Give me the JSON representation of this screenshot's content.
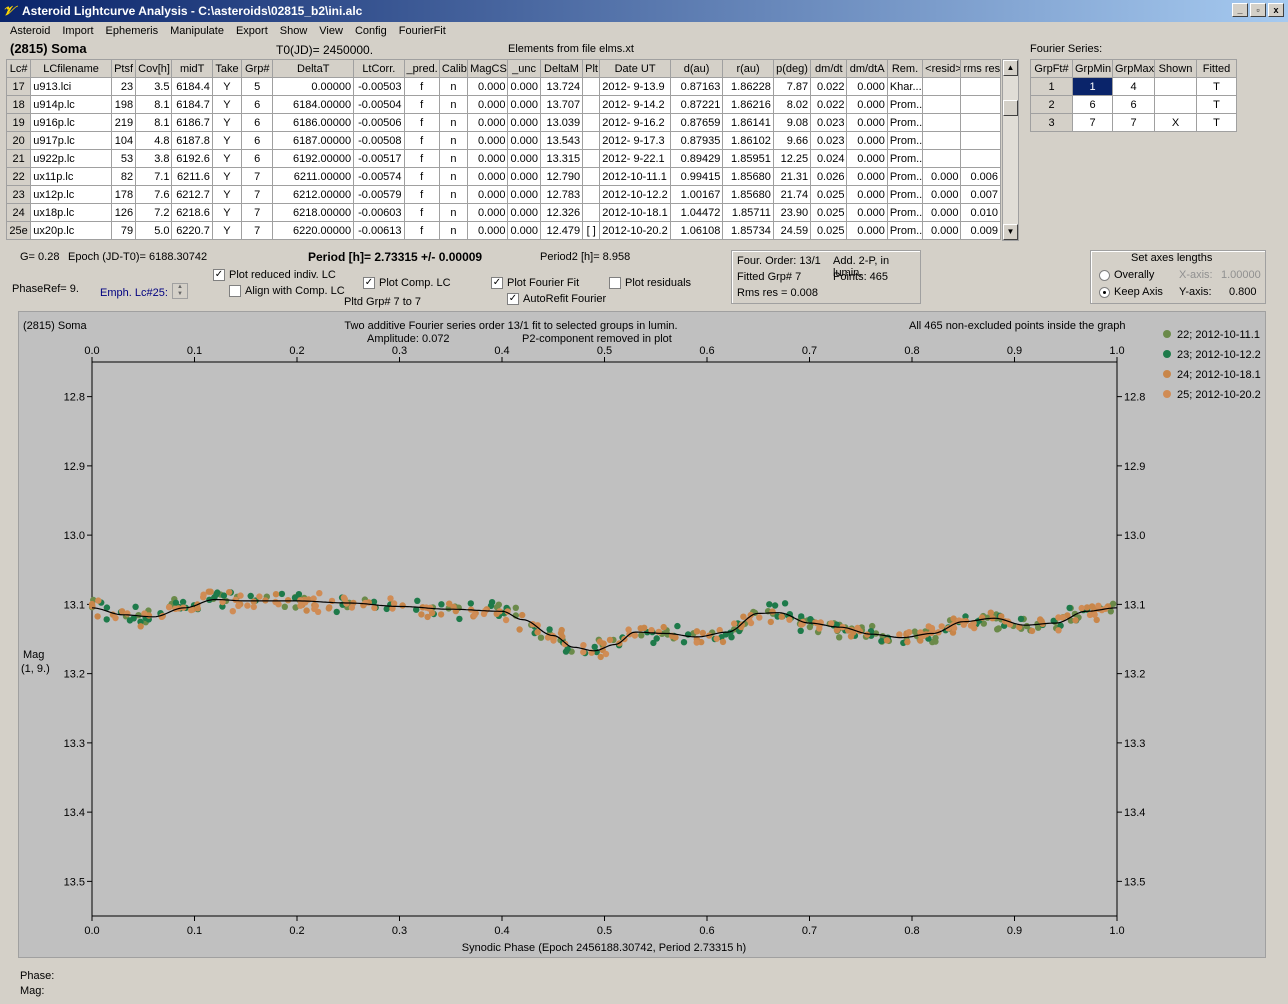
{
  "window": {
    "title": "Asteroid Lightcurve Analysis - C:\\asteroids\\02815_b2\\ini.alc",
    "btn_min": "_",
    "btn_restore": "▫",
    "btn_close": "x"
  },
  "menu": [
    "Asteroid",
    "Import",
    "Ephemeris",
    "Manipulate",
    "Export",
    "Show",
    "View",
    "Config",
    "FourierFit"
  ],
  "header": {
    "asteroid_name": "(2815) Soma",
    "t0": "T0(JD)= 2450000.",
    "elements": "Elements from file elms.xt"
  },
  "lc_table": {
    "columns": [
      "Lc#",
      "LCfilename",
      "Ptsf",
      "Cov[h]",
      "midT",
      "Take",
      "Grp#",
      "DeltaT",
      "LtCorr.",
      "_pred.",
      "Calib.",
      "MagCS",
      "_unc",
      "DeltaM",
      "Plt",
      "Date UT",
      "d(au)",
      "r(au)",
      "p(deg)",
      "dm/dt",
      "dm/dtA",
      "Rem.",
      "<resid>",
      "rms res"
    ],
    "rows": [
      [
        "17",
        "u913.lci",
        "23",
        "3.5",
        "6184.4",
        "Y",
        "5",
        "0.00000",
        "-0.00503",
        "f",
        "n",
        "0.000",
        "0.000",
        "13.724",
        "",
        "2012- 9-13.9",
        "0.87163",
        "1.86228",
        "7.87",
        "0.022",
        "0.000",
        "Khar...",
        "",
        ""
      ],
      [
        "18",
        "u914p.lc",
        "198",
        "8.1",
        "6184.7",
        "Y",
        "6",
        "6184.00000",
        "-0.00504",
        "f",
        "n",
        "0.000",
        "0.000",
        "13.707",
        "",
        "2012- 9-14.2",
        "0.87221",
        "1.86216",
        "8.02",
        "0.022",
        "0.000",
        "Prom...",
        "",
        ""
      ],
      [
        "19",
        "u916p.lc",
        "219",
        "8.1",
        "6186.7",
        "Y",
        "6",
        "6186.00000",
        "-0.00506",
        "f",
        "n",
        "0.000",
        "0.000",
        "13.039",
        "",
        "2012- 9-16.2",
        "0.87659",
        "1.86141",
        "9.08",
        "0.023",
        "0.000",
        "Prom...",
        "",
        ""
      ],
      [
        "20",
        "u917p.lc",
        "104",
        "4.8",
        "6187.8",
        "Y",
        "6",
        "6187.00000",
        "-0.00508",
        "f",
        "n",
        "0.000",
        "0.000",
        "13.543",
        "",
        "2012- 9-17.3",
        "0.87935",
        "1.86102",
        "9.66",
        "0.023",
        "0.000",
        "Prom...",
        "",
        ""
      ],
      [
        "21",
        "u922p.lc",
        "53",
        "3.8",
        "6192.6",
        "Y",
        "6",
        "6192.00000",
        "-0.00517",
        "f",
        "n",
        "0.000",
        "0.000",
        "13.315",
        "",
        "2012- 9-22.1",
        "0.89429",
        "1.85951",
        "12.25",
        "0.024",
        "0.000",
        "Prom...",
        "",
        ""
      ],
      [
        "22",
        "ux11p.lc",
        "82",
        "7.1",
        "6211.6",
        "Y",
        "7",
        "6211.00000",
        "-0.00574",
        "f",
        "n",
        "0.000",
        "0.000",
        "12.790",
        "",
        "2012-10-11.1",
        "0.99415",
        "1.85680",
        "21.31",
        "0.026",
        "0.000",
        "Prom...",
        "0.000",
        "0.006"
      ],
      [
        "23",
        "ux12p.lc",
        "178",
        "7.6",
        "6212.7",
        "Y",
        "7",
        "6212.00000",
        "-0.00579",
        "f",
        "n",
        "0.000",
        "0.000",
        "12.783",
        "",
        "2012-10-12.2",
        "1.00167",
        "1.85680",
        "21.74",
        "0.025",
        "0.000",
        "Prom...",
        "0.000",
        "0.007"
      ],
      [
        "24",
        "ux18p.lc",
        "126",
        "7.2",
        "6218.6",
        "Y",
        "7",
        "6218.00000",
        "-0.00603",
        "f",
        "n",
        "0.000",
        "0.000",
        "12.326",
        "",
        "2012-10-18.1",
        "1.04472",
        "1.85711",
        "23.90",
        "0.025",
        "0.000",
        "Prom...",
        "0.000",
        "0.010"
      ],
      [
        "25e",
        "ux20p.lc",
        "79",
        "5.0",
        "6220.7",
        "Y",
        "7",
        "6220.00000",
        "-0.00613",
        "f",
        "n",
        "0.000",
        "0.000",
        "12.479",
        "[ ]",
        "2012-10-20.2",
        "1.06108",
        "1.85734",
        "24.59",
        "0.025",
        "0.000",
        "Prom...",
        "0.000",
        "0.009"
      ]
    ]
  },
  "fourier_series": {
    "title": "Fourier Series:",
    "columns": [
      "GrpFt#",
      "GrpMin",
      "GrpMax",
      "Shown",
      "Fitted"
    ],
    "rows": [
      [
        "1",
        "1",
        "4",
        "",
        "T"
      ],
      [
        "2",
        "6",
        "6",
        "",
        "T"
      ],
      [
        "3",
        "7",
        "7",
        "X",
        "T"
      ]
    ]
  },
  "controls": {
    "g_value": "G= 0.28",
    "epoch": "Epoch (JD-T0)= 6188.30742",
    "period": "Period [h]= 2.73315 +/- 0.00009",
    "period2": "Period2 [h]= 8.958",
    "phaseref": "PhaseRef= 9.",
    "emph_lc": "Emph. Lc#25:",
    "plot_reduced": "Plot reduced indiv. LC",
    "align_comp": "Align with Comp. LC",
    "plot_comp": "Plot Comp. LC",
    "pltd_grp": "Pltd Grp#  7  to  7",
    "plot_fourier": "Plot Fourier Fit",
    "autorefit": "AutoRefit Fourier",
    "plot_residuals": "Plot residuals",
    "four_order": "Four. Order: 13/1",
    "add_2p": "Add. 2-P, in lumin.",
    "fitted_grp": "Fitted Grp# 7",
    "points": "Points: 465",
    "rms_res": "Rms res     = 0.008",
    "axes_title": "Set axes lengths",
    "overally": "Overally",
    "keep_axis": "Keep Axis",
    "x_axis_label": "X-axis:",
    "x_axis_value": "1.00000",
    "y_axis_label": "Y-axis:",
    "y_axis_value": "0.800"
  },
  "plot": {
    "name_label": "(2815) Soma",
    "title_line1": "Two additive Fourier series order 13/1 fit to selected groups in lumin.",
    "amplitude": "Amplitude: 0.072",
    "p2_removed": "P2-component removed in plot",
    "points_note": "All 465 non-excluded points inside the graph",
    "ylabel1": "Mag",
    "ylabel2": "(1, 9.)",
    "xlabel": "Synodic Phase (Epoch 2456188.30742, Period 2.73315 h)",
    "legend": [
      {
        "label": "22; 2012-10-11.1",
        "color": "#6b8a4a"
      },
      {
        "label": "23; 2012-10-12.2",
        "color": "#1e7a4a"
      },
      {
        "label": "24; 2012-10-18.1",
        "color": "#c8864a"
      },
      {
        "label": "25; 2012-10-20.2",
        "color": "#d08c55"
      }
    ]
  },
  "chart_data": {
    "type": "scatter",
    "title": "Two additive Fourier series order 13/1 fit to selected groups in lumin.",
    "xlabel": "Synodic Phase (Epoch 2456188.30742, Period 2.73315 h)",
    "ylabel": "Mag",
    "xlim": [
      0.0,
      1.0
    ],
    "ylim": [
      13.55,
      12.75
    ],
    "y_inverted": true,
    "x_ticks": [
      "0.0",
      "0.1",
      "0.2",
      "0.3",
      "0.4",
      "0.5",
      "0.6",
      "0.7",
      "0.8",
      "0.9",
      "1.0"
    ],
    "y_ticks": [
      "12.8",
      "12.9",
      "13.0",
      "13.1",
      "13.2",
      "13.3",
      "13.4",
      "13.5"
    ],
    "fit_curve": {
      "x": [
        0.0,
        0.03,
        0.06,
        0.09,
        0.12,
        0.15,
        0.2,
        0.25,
        0.3,
        0.35,
        0.4,
        0.42,
        0.45,
        0.47,
        0.49,
        0.51,
        0.53,
        0.56,
        0.59,
        0.62,
        0.65,
        0.67,
        0.7,
        0.73,
        0.76,
        0.79,
        0.82,
        0.85,
        0.88,
        0.91,
        0.94,
        0.97,
        1.0
      ],
      "y": [
        13.105,
        13.115,
        13.118,
        13.105,
        13.093,
        13.095,
        13.095,
        13.098,
        13.103,
        13.107,
        13.11,
        13.122,
        13.145,
        13.162,
        13.167,
        13.158,
        13.14,
        13.142,
        13.147,
        13.14,
        13.113,
        13.112,
        13.127,
        13.133,
        13.143,
        13.148,
        13.142,
        13.125,
        13.12,
        13.13,
        13.127,
        13.11,
        13.105
      ]
    },
    "series": [
      {
        "name": "22; 2012-10-11.1",
        "color": "#6b8a4a"
      },
      {
        "name": "23; 2012-10-12.2",
        "color": "#1e7a4a"
      },
      {
        "name": "24; 2012-10-18.1",
        "color": "#c8864a"
      },
      {
        "name": "25; 2012-10-20.2",
        "color": "#d08c55"
      }
    ],
    "n_points": 465
  },
  "status": {
    "phase": "Phase:",
    "mag": "Mag:"
  }
}
